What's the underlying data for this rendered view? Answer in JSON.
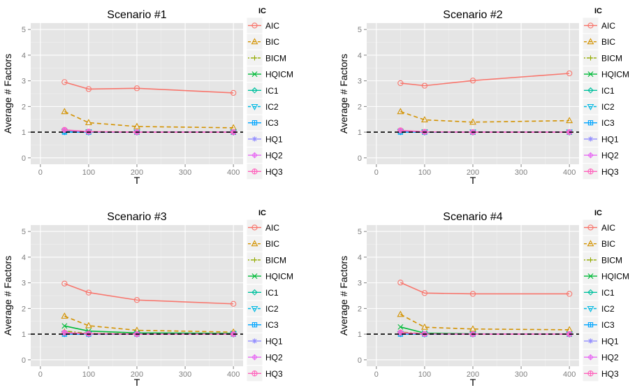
{
  "chart_data": [
    {
      "type": "line",
      "title": "Scenario #1",
      "xlabel": "T",
      "ylabel": "Average # Factors",
      "xlim": [
        -20,
        420
      ],
      "ylim": [
        -0.25,
        5.25
      ],
      "x_ticks": [
        0,
        100,
        200,
        300,
        400
      ],
      "y_ticks": [
        0,
        1,
        2,
        3,
        4,
        5
      ],
      "grid": true,
      "reference_line": 1,
      "x": [
        50,
        100,
        200,
        400
      ],
      "series": [
        {
          "name": "AIC",
          "values": [
            2.95,
            2.68,
            2.71,
            2.53
          ]
        },
        {
          "name": "BIC",
          "values": [
            1.8,
            1.37,
            1.22,
            1.17
          ]
        },
        {
          "name": "BICM",
          "values": [
            1.06,
            1.01,
            1.0,
            1.0
          ]
        },
        {
          "name": "HQICM",
          "values": [
            1.05,
            1.01,
            1.0,
            1.0
          ]
        },
        {
          "name": "IC1",
          "values": [
            1.02,
            1.0,
            1.0,
            1.0
          ]
        },
        {
          "name": "IC2",
          "values": [
            1.02,
            1.0,
            1.0,
            1.0
          ]
        },
        {
          "name": "IC3",
          "values": [
            1.0,
            1.0,
            1.0,
            1.0
          ]
        },
        {
          "name": "HQ1",
          "values": [
            1.08,
            1.01,
            1.0,
            1.0
          ]
        },
        {
          "name": "HQ2",
          "values": [
            1.08,
            1.01,
            1.0,
            1.0
          ]
        },
        {
          "name": "HQ3",
          "values": [
            1.09,
            1.02,
            1.0,
            1.0
          ]
        }
      ]
    },
    {
      "type": "line",
      "title": "Scenario #2",
      "xlabel": "T",
      "ylabel": "Average # Factors",
      "xlim": [
        -20,
        420
      ],
      "ylim": [
        -0.25,
        5.25
      ],
      "x_ticks": [
        0,
        100,
        200,
        300,
        400
      ],
      "y_ticks": [
        0,
        1,
        2,
        3,
        4,
        5
      ],
      "grid": true,
      "reference_line": 1,
      "x": [
        50,
        100,
        200,
        400
      ],
      "series": [
        {
          "name": "AIC",
          "values": [
            2.91,
            2.81,
            3.01,
            3.29
          ]
        },
        {
          "name": "BIC",
          "values": [
            1.8,
            1.48,
            1.39,
            1.45
          ]
        },
        {
          "name": "BICM",
          "values": [
            1.05,
            1.01,
            1.0,
            1.0
          ]
        },
        {
          "name": "HQICM",
          "values": [
            1.04,
            1.01,
            1.0,
            1.0
          ]
        },
        {
          "name": "IC1",
          "values": [
            1.02,
            1.0,
            1.0,
            1.0
          ]
        },
        {
          "name": "IC2",
          "values": [
            1.02,
            1.0,
            1.0,
            1.0
          ]
        },
        {
          "name": "IC3",
          "values": [
            1.0,
            1.0,
            1.0,
            1.0
          ]
        },
        {
          "name": "HQ1",
          "values": [
            1.06,
            1.01,
            1.0,
            1.0
          ]
        },
        {
          "name": "HQ2",
          "values": [
            1.06,
            1.01,
            1.0,
            1.0
          ]
        },
        {
          "name": "HQ3",
          "values": [
            1.07,
            1.01,
            1.0,
            1.0
          ]
        }
      ]
    },
    {
      "type": "line",
      "title": "Scenario #3",
      "xlabel": "T",
      "ylabel": "Average # Factors",
      "xlim": [
        -20,
        420
      ],
      "ylim": [
        -0.25,
        5.25
      ],
      "x_ticks": [
        0,
        100,
        200,
        300,
        400
      ],
      "y_ticks": [
        0,
        1,
        2,
        3,
        4,
        5
      ],
      "grid": true,
      "reference_line": 1,
      "x": [
        50,
        100,
        200,
        400
      ],
      "series": [
        {
          "name": "AIC",
          "values": [
            2.97,
            2.62,
            2.33,
            2.18
          ]
        },
        {
          "name": "BIC",
          "values": [
            1.7,
            1.33,
            1.15,
            1.08
          ]
        },
        {
          "name": "BICM",
          "values": [
            1.12,
            1.03,
            1.01,
            1.0
          ]
        },
        {
          "name": "HQICM",
          "values": [
            1.32,
            1.12,
            1.05,
            1.03
          ]
        },
        {
          "name": "IC1",
          "values": [
            1.02,
            1.0,
            1.0,
            1.0
          ]
        },
        {
          "name": "IC2",
          "values": [
            1.02,
            1.0,
            1.0,
            1.0
          ]
        },
        {
          "name": "IC3",
          "values": [
            1.0,
            1.0,
            1.0,
            1.0
          ]
        },
        {
          "name": "HQ1",
          "values": [
            1.05,
            1.01,
            1.0,
            1.0
          ]
        },
        {
          "name": "HQ2",
          "values": [
            1.05,
            1.01,
            1.0,
            1.0
          ]
        },
        {
          "name": "HQ3",
          "values": [
            1.06,
            1.02,
            1.0,
            1.0
          ]
        }
      ]
    },
    {
      "type": "line",
      "title": "Scenario #4",
      "xlabel": "T",
      "ylabel": "Average # Factors",
      "xlim": [
        -20,
        420
      ],
      "ylim": [
        -0.25,
        5.25
      ],
      "x_ticks": [
        0,
        100,
        200,
        300,
        400
      ],
      "y_ticks": [
        0,
        1,
        2,
        3,
        4,
        5
      ],
      "grid": true,
      "reference_line": 1,
      "x": [
        50,
        100,
        200,
        400
      ],
      "series": [
        {
          "name": "AIC",
          "values": [
            3.01,
            2.6,
            2.57,
            2.57
          ]
        },
        {
          "name": "BIC",
          "values": [
            1.77,
            1.27,
            1.2,
            1.17
          ]
        },
        {
          "name": "BICM",
          "values": [
            1.08,
            1.02,
            1.0,
            1.0
          ]
        },
        {
          "name": "HQICM",
          "values": [
            1.28,
            1.04,
            1.01,
            1.0
          ]
        },
        {
          "name": "IC1",
          "values": [
            1.02,
            1.0,
            1.0,
            1.0
          ]
        },
        {
          "name": "IC2",
          "values": [
            1.02,
            1.0,
            1.0,
            1.0
          ]
        },
        {
          "name": "IC3",
          "values": [
            1.0,
            1.0,
            1.0,
            1.0
          ]
        },
        {
          "name": "HQ1",
          "values": [
            1.05,
            1.01,
            1.0,
            1.0
          ]
        },
        {
          "name": "HQ2",
          "values": [
            1.05,
            1.01,
            1.0,
            1.0
          ]
        },
        {
          "name": "HQ3",
          "values": [
            1.06,
            1.01,
            1.0,
            1.0
          ]
        }
      ]
    }
  ],
  "legend": {
    "title": "IC",
    "entries": [
      {
        "name": "AIC",
        "color": "#F8766D",
        "shape": "circle",
        "dash": "solid"
      },
      {
        "name": "BIC",
        "color": "#D39200",
        "shape": "triangle",
        "dash": "dashed"
      },
      {
        "name": "BICM",
        "color": "#93AA00",
        "shape": "plus",
        "dash": "dotdash"
      },
      {
        "name": "HQICM",
        "color": "#00BA38",
        "shape": "cross",
        "dash": "solid"
      },
      {
        "name": "IC1",
        "color": "#00C19F",
        "shape": "diamond",
        "dash": "solid"
      },
      {
        "name": "IC2",
        "color": "#00B9E3",
        "shape": "triangle-down",
        "dash": "dashed"
      },
      {
        "name": "IC3",
        "color": "#00A5FF",
        "shape": "square-cross",
        "dash": "solid"
      },
      {
        "name": "HQ1",
        "color": "#9590FF",
        "shape": "asterisk",
        "dash": "solid"
      },
      {
        "name": "HQ2",
        "color": "#E76BF3",
        "shape": "diamond-plus",
        "dash": "solid"
      },
      {
        "name": "HQ3",
        "color": "#FF62BC",
        "shape": "circle-plus",
        "dash": "solid"
      }
    ]
  }
}
